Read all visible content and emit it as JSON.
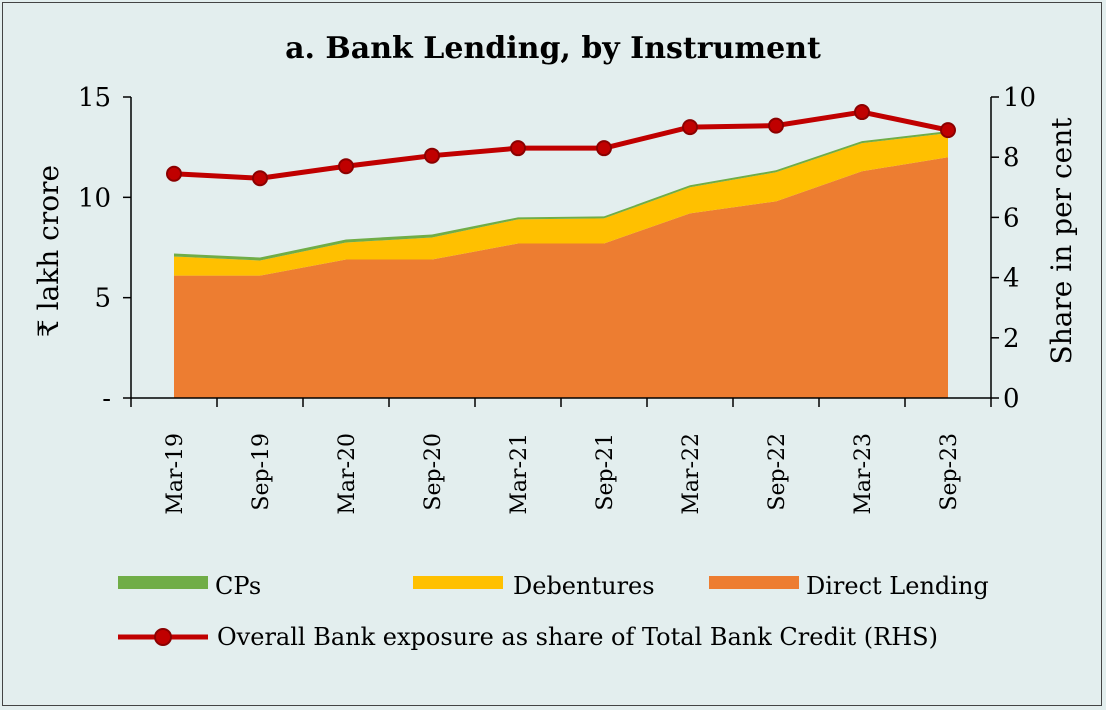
{
  "chart_data": {
    "type": "area",
    "title": "a. Bank Lending, by Instrument",
    "categories": [
      "Mar-19",
      "Sep-19",
      "Mar-20",
      "Sep-20",
      "Mar-21",
      "Sep-21",
      "Mar-22",
      "Sep-22",
      "Mar-23",
      "Sep-23"
    ],
    "ylabel": "₹ lakh crore",
    "y2label": "Share in per cent",
    "ylim": [
      0,
      15
    ],
    "y2lim": [
      0,
      10
    ],
    "yticks": [
      "-",
      "5",
      "10",
      "15"
    ],
    "y2ticks": [
      "0",
      "2",
      "4",
      "6",
      "8",
      "10"
    ],
    "stacked": true,
    "series": [
      {
        "name": "Direct Lending",
        "axis": "left",
        "color": "#ed7d31",
        "values": [
          6.1,
          6.1,
          6.9,
          6.9,
          7.7,
          7.7,
          9.2,
          9.8,
          11.3,
          12.0
        ]
      },
      {
        "name": "Debentures",
        "axis": "left",
        "color": "#ffc000",
        "values": [
          0.95,
          0.75,
          0.85,
          1.1,
          1.2,
          1.25,
          1.3,
          1.45,
          1.4,
          1.2
        ]
      },
      {
        "name": "CPs",
        "axis": "left",
        "color": "#70ad47",
        "values": [
          0.15,
          0.15,
          0.15,
          0.15,
          0.1,
          0.1,
          0.1,
          0.1,
          0.1,
          0.1
        ]
      },
      {
        "name": "Overall Bank exposure as share of Total Bank Credit (RHS)",
        "axis": "right",
        "type": "line",
        "color": "#c00000",
        "values": [
          7.45,
          7.3,
          7.7,
          8.05,
          8.3,
          8.3,
          9.0,
          9.05,
          9.5,
          8.9
        ]
      }
    ],
    "legend": {
      "placement": "bottom",
      "items": [
        "CPs",
        "Debentures",
        "Direct Lending",
        "Overall Bank exposure as share of Total Bank Credit (RHS)"
      ]
    }
  }
}
